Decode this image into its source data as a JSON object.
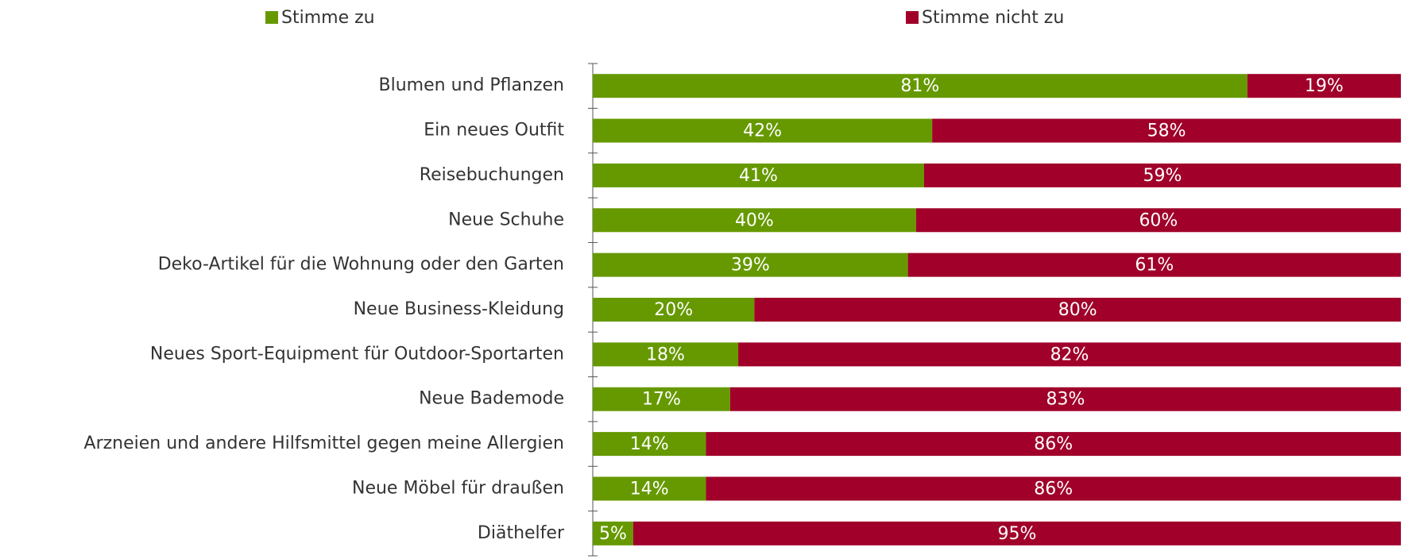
{
  "chart_data": {
    "type": "stacked-bar-horizontal",
    "categories": [
      "Blumen und Pflanzen",
      "Ein neues Outfit",
      "Reisebuchungen",
      "Neue Schuhe",
      "Deko-Artikel für die Wohnung oder den Garten",
      "Neue Business-Kleidung",
      "Neues Sport-Equipment für Outdoor-Sportarten",
      "Neue Bademode",
      "Arzneien und andere Hilfsmittel gegen meine Allergien",
      "Neue Möbel für draußen",
      "Diäthelfer"
    ],
    "series": [
      {
        "name": "Stimme zu",
        "color": "#669900",
        "values": [
          81,
          42,
          41,
          40,
          39,
          20,
          18,
          17,
          14,
          14,
          5
        ],
        "value_labels": [
          "81%",
          "42%",
          "41%",
          "40%",
          "39%",
          "20%",
          "18%",
          "17%",
          "14%",
          "14%",
          "5%"
        ]
      },
      {
        "name": "Stimme nicht zu",
        "color": "#a0002a",
        "values": [
          19,
          58,
          59,
          60,
          61,
          80,
          82,
          83,
          86,
          86,
          95
        ],
        "value_labels": [
          "19%",
          "58%",
          "59%",
          "60%",
          "61%",
          "80%",
          "82%",
          "83%",
          "86%",
          "86%",
          "95%"
        ]
      }
    ],
    "legend": "top"
  }
}
